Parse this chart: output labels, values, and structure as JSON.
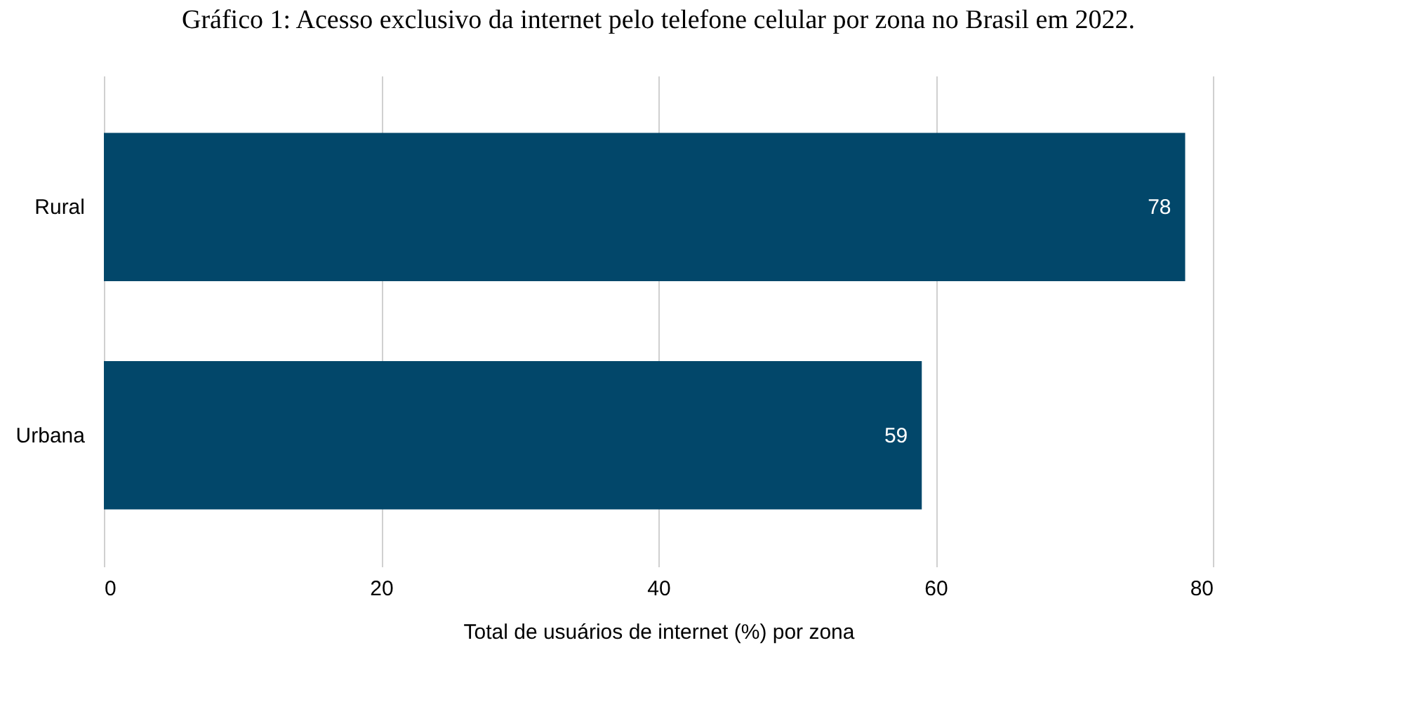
{
  "chart_data": {
    "type": "bar",
    "orientation": "horizontal",
    "title": "Gráfico 1: Acesso exclusivo da internet pelo telefone celular por zona no Brasil em 2022.",
    "xlabel": "Total de usuários de internet (%) por zona",
    "categories": [
      "Rural",
      "Urbana"
    ],
    "values": [
      78,
      59
    ],
    "color": "#02476a",
    "data_labels": true,
    "xlim": [
      0,
      80
    ],
    "xticks": [
      0,
      20,
      40,
      60,
      80
    ],
    "grid": "x"
  }
}
